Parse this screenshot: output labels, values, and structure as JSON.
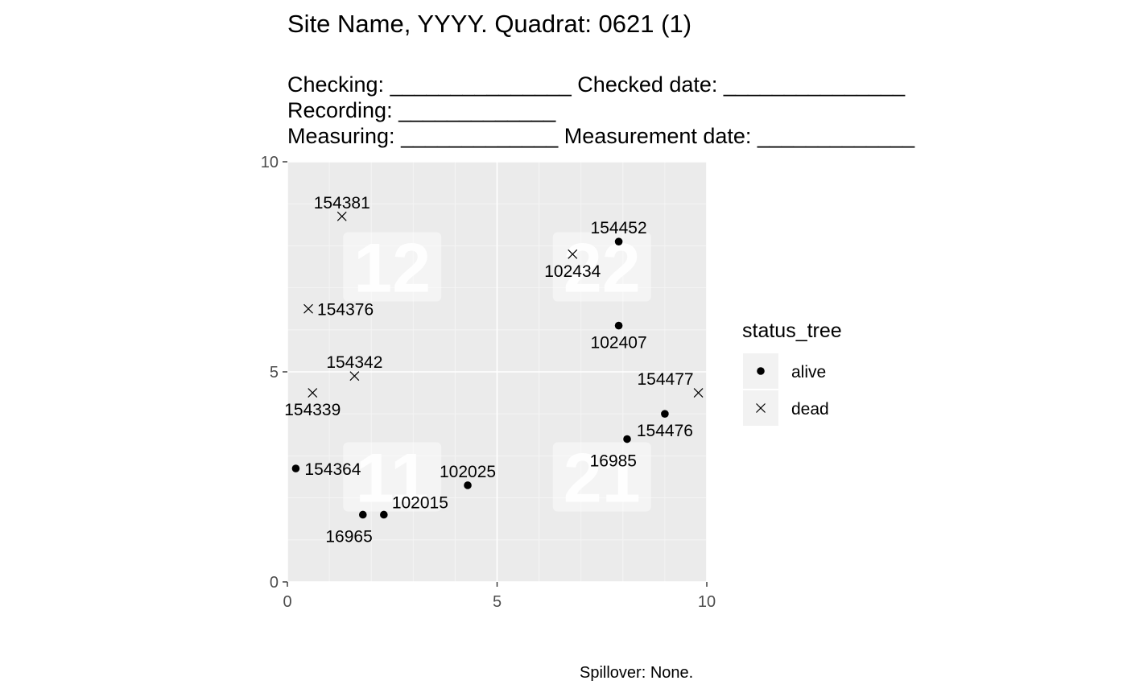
{
  "title": "Site Name, YYYY. Quadrat: 0621 (1)",
  "subtitle": [
    "Checking: _______________ Checked date: _______________",
    "Recording: _____________",
    "Measuring: _____________ Measurement date: _____________"
  ],
  "caption": "Spillover: None.",
  "chart_data": {
    "type": "scatter",
    "xlim": [
      0,
      10
    ],
    "ylim": [
      0,
      10
    ],
    "x_ticks": [
      0,
      5,
      10
    ],
    "y_ticks": [
      0,
      5,
      10
    ],
    "grid": true,
    "legend": {
      "title": "status_tree",
      "position": "right",
      "entries": [
        {
          "label": "alive",
          "shape": "dot"
        },
        {
          "label": "dead",
          "shape": "cross"
        }
      ]
    },
    "subquadrats": [
      {
        "label": "11",
        "x": 2.5,
        "y": 2.5
      },
      {
        "label": "12",
        "x": 2.5,
        "y": 7.5
      },
      {
        "label": "21",
        "x": 7.5,
        "y": 2.5
      },
      {
        "label": "22",
        "x": 7.5,
        "y": 7.5
      }
    ],
    "points": [
      {
        "tag": "154381",
        "x": 1.3,
        "y": 8.7,
        "status": "dead",
        "label_pos": "above"
      },
      {
        "tag": "154452",
        "x": 7.9,
        "y": 8.1,
        "status": "alive",
        "label_pos": "above"
      },
      {
        "tag": "102434",
        "x": 6.8,
        "y": 7.8,
        "status": "dead",
        "label_pos": "below"
      },
      {
        "tag": "154376",
        "x": 0.5,
        "y": 6.5,
        "status": "dead",
        "label_pos": "right"
      },
      {
        "tag": "102407",
        "x": 7.9,
        "y": 6.1,
        "status": "alive",
        "label_pos": "below"
      },
      {
        "tag": "154342",
        "x": 1.6,
        "y": 4.9,
        "status": "dead",
        "label_pos": "above"
      },
      {
        "tag": "154477",
        "x": 9.8,
        "y": 4.5,
        "status": "dead",
        "label_pos": "upper-left"
      },
      {
        "tag": "154339",
        "x": 0.6,
        "y": 4.5,
        "status": "dead",
        "label_pos": "below"
      },
      {
        "tag": "154476",
        "x": 9.0,
        "y": 4.0,
        "status": "alive",
        "label_pos": "below"
      },
      {
        "tag": "16985",
        "x": 8.1,
        "y": 3.4,
        "status": "alive",
        "label_pos": "lower-left"
      },
      {
        "tag": "154364",
        "x": 0.2,
        "y": 2.7,
        "status": "alive",
        "label_pos": "right"
      },
      {
        "tag": "102025",
        "x": 4.3,
        "y": 2.3,
        "status": "alive",
        "label_pos": "above"
      },
      {
        "tag": "102015",
        "x": 2.3,
        "y": 1.6,
        "status": "alive",
        "label_pos": "upper-right"
      },
      {
        "tag": "16965",
        "x": 1.8,
        "y": 1.6,
        "status": "alive",
        "label_pos": "lower-left"
      }
    ]
  }
}
